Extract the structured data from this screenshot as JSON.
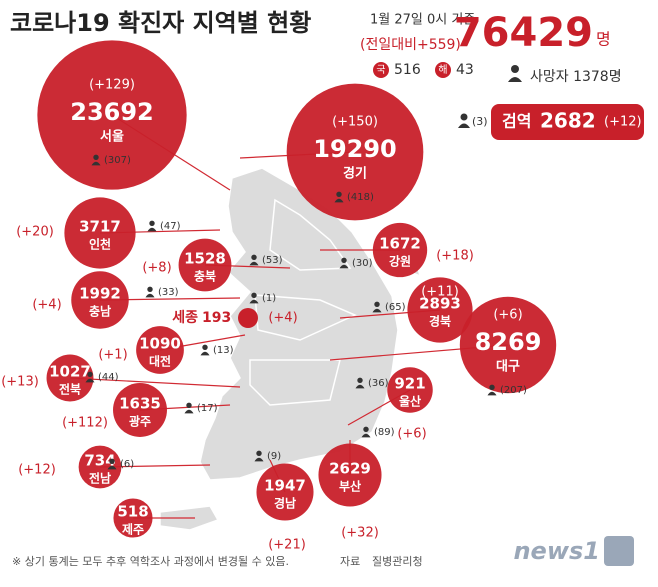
{
  "header": {
    "title": "코로나19 확진자 지역별 현황",
    "date": "1월 27일 0시 기준",
    "change": "(전일대비+559)",
    "total": 76429,
    "total_unit": "명",
    "domestic_badge": "국",
    "domestic": 516,
    "overseas_badge": "해",
    "overseas": 43,
    "deaths": "사망자 1378명",
    "quarantine_deaths": "(3)",
    "quarantine_label": "검역",
    "quarantine": 2682,
    "quarantine_change": "(+12)"
  },
  "regions": [
    {
      "name": "서울",
      "count": 23692,
      "delta": "(+129)",
      "deaths": "(307)"
    },
    {
      "name": "경기",
      "count": 19290,
      "delta": "(+150)",
      "deaths": "(418)"
    },
    {
      "name": "인천",
      "count": 3717,
      "delta": "(+20)",
      "deaths": "(47)"
    },
    {
      "name": "충북",
      "count": 1528,
      "delta": "(+8)",
      "deaths": "(53)"
    },
    {
      "name": "강원",
      "count": 1672,
      "delta": "(+18)",
      "deaths": "(30)"
    },
    {
      "name": "충남",
      "count": 1992,
      "delta": "(+4)",
      "deaths": "(33)"
    },
    {
      "name": "세종",
      "count": 193,
      "delta": "(+4)",
      "deaths": "(1)"
    },
    {
      "name": "경북",
      "count": 2893,
      "delta": "(+11)",
      "deaths": "(65)"
    },
    {
      "name": "대구",
      "count": 8269,
      "delta": "(+6)",
      "deaths": "(207)"
    },
    {
      "name": "대전",
      "count": 1090,
      "delta": "(+1)",
      "deaths": "(13)"
    },
    {
      "name": "전북",
      "count": 1027,
      "delta": "(+13)",
      "deaths": "(44)"
    },
    {
      "name": "울산",
      "count": 921,
      "delta": "(+6)",
      "deaths": "(36)"
    },
    {
      "name": "광주",
      "count": 1635,
      "delta": "(+112)",
      "deaths": "(17)"
    },
    {
      "name": "전남",
      "count": 734,
      "delta": "(+12)",
      "deaths": "(6)"
    },
    {
      "name": "부산",
      "count": 2629,
      "delta": "(+32)",
      "deaths": "(89)"
    },
    {
      "name": "경남",
      "count": 1947,
      "delta": "(+21)",
      "deaths": "(9)"
    },
    {
      "name": "제주",
      "count": 518
    }
  ],
  "footer": {
    "note": "※ 상기 통계는 모두 추후 역학조사 과정에서 변경될 수 있음.",
    "source_label": "자료",
    "source": "질병관리청",
    "logo": "news1"
  }
}
